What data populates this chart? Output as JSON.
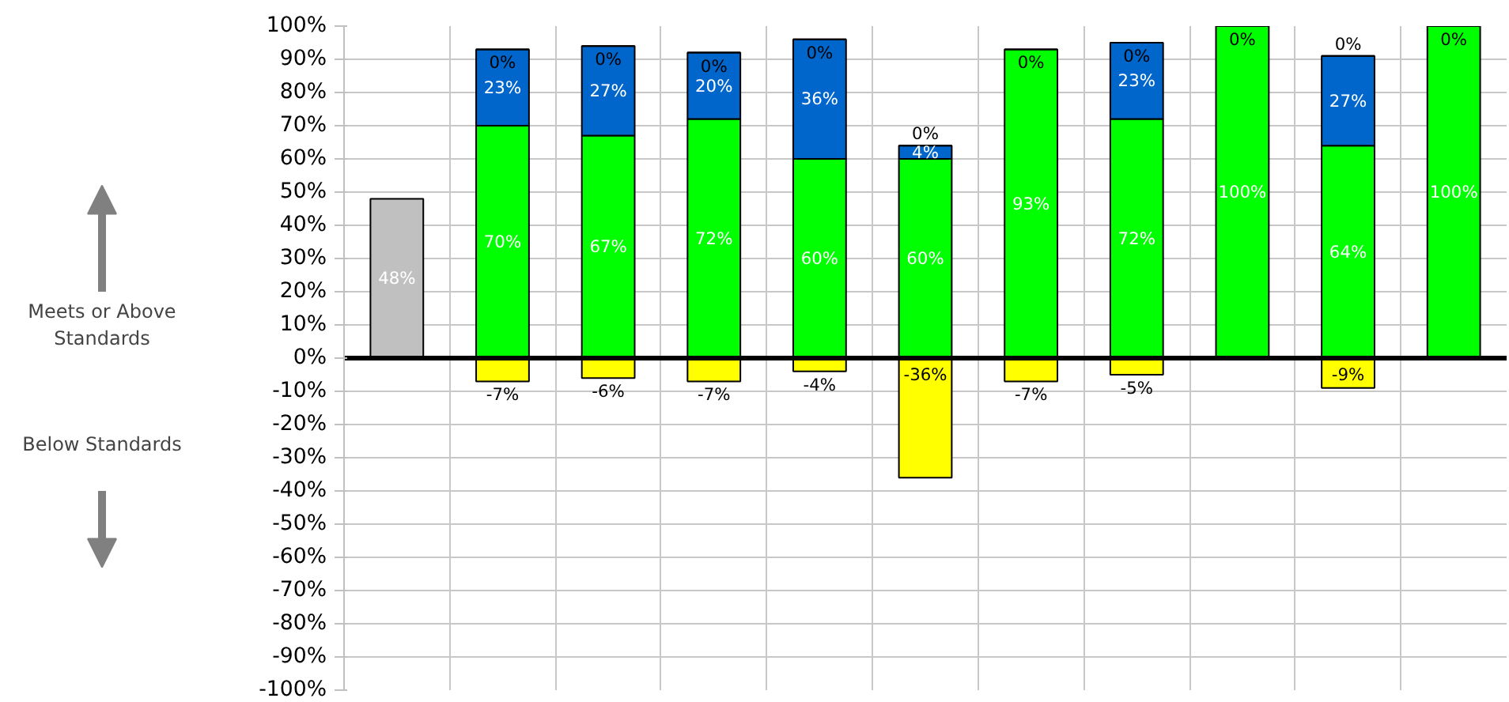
{
  "chart_data": {
    "type": "bar",
    "stacked": true,
    "grid": true,
    "tick_labels": "y",
    "annotations": [
      "Meets or Above Standards",
      "Below Standards"
    ],
    "categories": [
      null,
      null,
      null,
      null,
      null,
      null,
      null,
      null,
      null,
      null,
      null
    ],
    "ylim": [
      -100,
      100
    ],
    "yticks": [
      {
        "value": -100,
        "label": "-100%"
      },
      {
        "value": -90,
        "label": "-90%"
      },
      {
        "value": -80,
        "label": "-80%"
      },
      {
        "value": -70,
        "label": "-70%"
      },
      {
        "value": -60,
        "label": "-60%"
      },
      {
        "value": -50,
        "label": "-50%"
      },
      {
        "value": -40,
        "label": "-40%"
      },
      {
        "value": -30,
        "label": "-30%"
      },
      {
        "value": -20,
        "label": "-20%"
      },
      {
        "value": -10,
        "label": "-10%"
      },
      {
        "value": 0,
        "label": "0%"
      },
      {
        "value": 10,
        "label": "10%"
      },
      {
        "value": 20,
        "label": "20%"
      },
      {
        "value": 30,
        "label": "30%"
      },
      {
        "value": 40,
        "label": "40%"
      },
      {
        "value": 50,
        "label": "50%"
      },
      {
        "value": 60,
        "label": "60%"
      },
      {
        "value": 70,
        "label": "70%"
      },
      {
        "value": 80,
        "label": "80%"
      },
      {
        "value": 90,
        "label": "90%"
      },
      {
        "value": 100,
        "label": "100%"
      }
    ],
    "series": [
      {
        "color": "#c0c0c0",
        "values": [
          48,
          null,
          null,
          null,
          null,
          null,
          null,
          null,
          null,
          null,
          null
        ],
        "value_labels": [
          "48%",
          null,
          null,
          null,
          null,
          null,
          null,
          null,
          null,
          null,
          null
        ]
      },
      {
        "color": "#00ff00",
        "values": [
          null,
          70,
          67,
          72,
          60,
          60,
          93,
          72,
          100,
          64,
          100
        ],
        "value_labels": [
          null,
          "70%",
          "67%",
          "72%",
          "60%",
          "60%",
          "93%",
          "72%",
          "100%",
          "64%",
          "100%"
        ]
      },
      {
        "color": "#0066cc",
        "values": [
          null,
          23,
          27,
          20,
          36,
          4,
          null,
          23,
          null,
          27,
          null
        ],
        "value_labels": [
          null,
          "23%",
          "27%",
          "20%",
          "36%",
          "4%",
          null,
          "23%",
          null,
          "27%",
          null
        ]
      },
      {
        "color": "#000000",
        "values": [
          null,
          0,
          0,
          0,
          0,
          0,
          0,
          0,
          0,
          0,
          0
        ],
        "value_labels": [
          null,
          "0%",
          "0%",
          "0%",
          "0%",
          "0%",
          "0%",
          "0%",
          "0%",
          "0%",
          "0%"
        ]
      },
      {
        "color": "#ffff00",
        "values": [
          null,
          -7,
          -6,
          -7,
          -4,
          -36,
          -7,
          -5,
          null,
          -9,
          null
        ],
        "value_labels": [
          null,
          "-7%",
          "-6%",
          "-7%",
          "-4%",
          "-36%",
          "-7%",
          "-5%",
          null,
          "-9%",
          null
        ]
      }
    ]
  }
}
